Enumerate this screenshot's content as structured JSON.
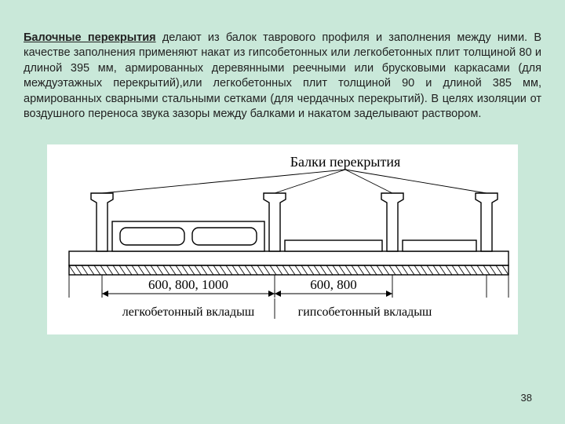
{
  "text": {
    "bold_lead": "Балочные перекрытия",
    "paragraph": " делают из балок таврового профиля и заполнения между ними. В качестве заполнения применяют накат из гипсобетонных или легкобетонных плит толщиной 80 и длиной 395 мм, армированных деревянными реечными или брусковыми каркасами (для междуэтажных перекрытий),или легкобетонных плит толщиной 90 и длиной 385 мм, армированных сварными стальными сетками (для чердачных перекрытий). В целях изоляции от воздушного переноса звука зазоры между балками и накатом заделывают раствором."
  },
  "figure": {
    "type": "diagram",
    "title": "Балки перекрытия",
    "left_dim": "600, 800, 1000",
    "right_dim": "600, 800",
    "left_caption": "легкобетонный вкладыш",
    "right_caption": "гипсобетонный вкладыш",
    "colors": {
      "stroke": "#000000",
      "bg": "#ffffff",
      "hatch": "#000000",
      "leader": "#000000"
    },
    "stroke_width": 1.4,
    "title_fontsize": 18,
    "dim_fontsize": 17,
    "caption_fontsize": 16
  },
  "page_number": "38"
}
